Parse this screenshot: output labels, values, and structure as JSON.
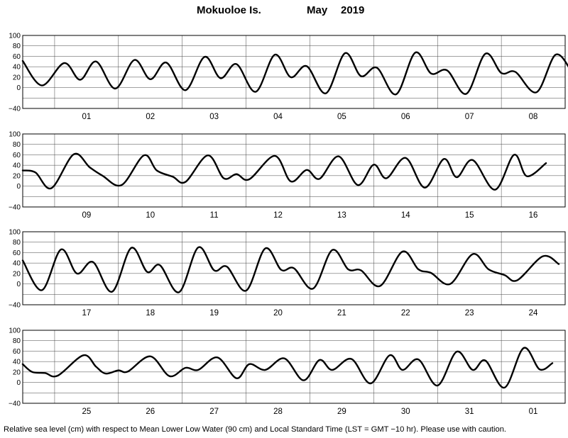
{
  "title": {
    "station": "Mokuoloe Is.",
    "month": "May",
    "year": "2019"
  },
  "caption": "Relative sea level (cm) with respect to Mean Lower Low Water (90 cm) and Local Standard Time (LST = GMT −10 hr). Please use with caution.",
  "chart_data": [
    {
      "type": "line",
      "ylim": [
        -40,
        100
      ],
      "yticks": [
        "100",
        "80",
        "60",
        "40",
        "20",
        "0",
        "−40"
      ],
      "categories": [
        "01",
        "02",
        "03",
        "04",
        "05",
        "06",
        "07",
        "08"
      ],
      "series": [
        {
          "values": [
            {
              "x": 0.0,
              "y": 51
            },
            {
              "x": 0.3,
              "y": 4
            },
            {
              "x": 0.65,
              "y": 47
            },
            {
              "x": 0.9,
              "y": 15
            },
            {
              "x": 1.15,
              "y": 50
            },
            {
              "x": 1.45,
              "y": -2
            },
            {
              "x": 1.75,
              "y": 53
            },
            {
              "x": 2.0,
              "y": 16
            },
            {
              "x": 2.25,
              "y": 48
            },
            {
              "x": 2.55,
              "y": -5
            },
            {
              "x": 2.85,
              "y": 59
            },
            {
              "x": 3.1,
              "y": 18
            },
            {
              "x": 3.35,
              "y": 45
            },
            {
              "x": 3.65,
              "y": -8
            },
            {
              "x": 3.95,
              "y": 63
            },
            {
              "x": 4.2,
              "y": 20
            },
            {
              "x": 4.45,
              "y": 41
            },
            {
              "x": 4.75,
              "y": -11
            },
            {
              "x": 5.05,
              "y": 66
            },
            {
              "x": 5.3,
              "y": 22
            },
            {
              "x": 5.55,
              "y": 38
            },
            {
              "x": 5.85,
              "y": -13
            },
            {
              "x": 6.15,
              "y": 67
            },
            {
              "x": 6.4,
              "y": 27
            },
            {
              "x": 6.65,
              "y": 33
            },
            {
              "x": 6.95,
              "y": -12
            },
            {
              "x": 7.25,
              "y": 65
            },
            {
              "x": 7.5,
              "y": 28
            },
            {
              "x": 7.72,
              "y": 30
            },
            {
              "x": 8.05,
              "y": -9
            },
            {
              "x": 8.35,
              "y": 63
            },
            {
              "x": 8.6,
              "y": 31
            }
          ]
        }
      ]
    },
    {
      "type": "line",
      "ylim": [
        -40,
        100
      ],
      "yticks": [
        "100",
        "80",
        "60",
        "40",
        "20",
        "0",
        "−40"
      ],
      "categories": [
        "09",
        "10",
        "11",
        "12",
        "13",
        "14",
        "15",
        "16"
      ],
      "series": [
        {
          "values": [
            {
              "x": 0.0,
              "y": 30
            },
            {
              "x": 0.2,
              "y": 26
            },
            {
              "x": 0.45,
              "y": -4
            },
            {
              "x": 0.8,
              "y": 61
            },
            {
              "x": 1.05,
              "y": 36
            },
            {
              "x": 1.25,
              "y": 20
            },
            {
              "x": 1.55,
              "y": 2
            },
            {
              "x": 1.9,
              "y": 59
            },
            {
              "x": 2.1,
              "y": 30
            },
            {
              "x": 2.35,
              "y": 18
            },
            {
              "x": 2.55,
              "y": 8
            },
            {
              "x": 2.9,
              "y": 59
            },
            {
              "x": 3.15,
              "y": 15
            },
            {
              "x": 3.35,
              "y": 23
            },
            {
              "x": 3.55,
              "y": 13
            },
            {
              "x": 3.95,
              "y": 58
            },
            {
              "x": 4.2,
              "y": 9
            },
            {
              "x": 4.45,
              "y": 31
            },
            {
              "x": 4.65,
              "y": 14
            },
            {
              "x": 4.95,
              "y": 57
            },
            {
              "x": 5.25,
              "y": 2
            },
            {
              "x": 5.5,
              "y": 41
            },
            {
              "x": 5.7,
              "y": 15
            },
            {
              "x": 6.0,
              "y": 54
            },
            {
              "x": 6.3,
              "y": -3
            },
            {
              "x": 6.6,
              "y": 52
            },
            {
              "x": 6.8,
              "y": 17
            },
            {
              "x": 7.05,
              "y": 50
            },
            {
              "x": 7.4,
              "y": -7
            },
            {
              "x": 7.7,
              "y": 60
            },
            {
              "x": 7.9,
              "y": 19
            },
            {
              "x": 8.2,
              "y": 44
            }
          ]
        }
      ]
    },
    {
      "type": "line",
      "ylim": [
        -40,
        100
      ],
      "yticks": [
        "100",
        "80",
        "60",
        "40",
        "20",
        "0",
        "−40"
      ],
      "categories": [
        "17",
        "18",
        "19",
        "20",
        "21",
        "22",
        "23",
        "24"
      ],
      "series": [
        {
          "values": [
            {
              "x": 0.0,
              "y": 45
            },
            {
              "x": 0.3,
              "y": -12
            },
            {
              "x": 0.6,
              "y": 66
            },
            {
              "x": 0.85,
              "y": 20
            },
            {
              "x": 1.1,
              "y": 42
            },
            {
              "x": 1.4,
              "y": -15
            },
            {
              "x": 1.7,
              "y": 69
            },
            {
              "x": 1.95,
              "y": 23
            },
            {
              "x": 2.15,
              "y": 36
            },
            {
              "x": 2.45,
              "y": -16
            },
            {
              "x": 2.75,
              "y": 70
            },
            {
              "x": 3.0,
              "y": 26
            },
            {
              "x": 3.2,
              "y": 33
            },
            {
              "x": 3.5,
              "y": -13
            },
            {
              "x": 3.8,
              "y": 68
            },
            {
              "x": 4.05,
              "y": 27
            },
            {
              "x": 4.25,
              "y": 30
            },
            {
              "x": 4.55,
              "y": -9
            },
            {
              "x": 4.85,
              "y": 65
            },
            {
              "x": 5.1,
              "y": 28
            },
            {
              "x": 5.3,
              "y": 26
            },
            {
              "x": 5.6,
              "y": -4
            },
            {
              "x": 5.95,
              "y": 62
            },
            {
              "x": 6.2,
              "y": 28
            },
            {
              "x": 6.4,
              "y": 21
            },
            {
              "x": 6.7,
              "y": 0
            },
            {
              "x": 7.05,
              "y": 57
            },
            {
              "x": 7.3,
              "y": 28
            },
            {
              "x": 7.55,
              "y": 17
            },
            {
              "x": 7.75,
              "y": 7
            },
            {
              "x": 8.15,
              "y": 53
            },
            {
              "x": 8.4,
              "y": 38
            }
          ]
        }
      ]
    },
    {
      "type": "line",
      "ylim": [
        -40,
        100
      ],
      "yticks": [
        "100",
        "80",
        "60",
        "40",
        "20",
        "0",
        "−40"
      ],
      "categories": [
        "25",
        "26",
        "27",
        "28",
        "29",
        "30",
        "31",
        "01"
      ],
      "series": [
        {
          "values": [
            {
              "x": 0.0,
              "y": 35
            },
            {
              "x": 0.15,
              "y": 20
            },
            {
              "x": 0.35,
              "y": 18
            },
            {
              "x": 0.55,
              "y": 13
            },
            {
              "x": 0.95,
              "y": 52
            },
            {
              "x": 1.15,
              "y": 30
            },
            {
              "x": 1.3,
              "y": 17
            },
            {
              "x": 1.5,
              "y": 23
            },
            {
              "x": 1.65,
              "y": 21
            },
            {
              "x": 2.0,
              "y": 50
            },
            {
              "x": 2.3,
              "y": 12
            },
            {
              "x": 2.55,
              "y": 28
            },
            {
              "x": 2.75,
              "y": 24
            },
            {
              "x": 3.05,
              "y": 48
            },
            {
              "x": 3.35,
              "y": 8
            },
            {
              "x": 3.55,
              "y": 35
            },
            {
              "x": 3.8,
              "y": 24
            },
            {
              "x": 4.1,
              "y": 46
            },
            {
              "x": 4.4,
              "y": 4
            },
            {
              "x": 4.65,
              "y": 43
            },
            {
              "x": 4.85,
              "y": 24
            },
            {
              "x": 5.15,
              "y": 45
            },
            {
              "x": 5.45,
              "y": -2
            },
            {
              "x": 5.75,
              "y": 52
            },
            {
              "x": 5.95,
              "y": 24
            },
            {
              "x": 6.2,
              "y": 44
            },
            {
              "x": 6.5,
              "y": -6
            },
            {
              "x": 6.8,
              "y": 59
            },
            {
              "x": 7.05,
              "y": 24
            },
            {
              "x": 7.25,
              "y": 42
            },
            {
              "x": 7.55,
              "y": -10
            },
            {
              "x": 7.85,
              "y": 66
            },
            {
              "x": 8.1,
              "y": 25
            },
            {
              "x": 8.3,
              "y": 37
            }
          ]
        }
      ]
    }
  ]
}
